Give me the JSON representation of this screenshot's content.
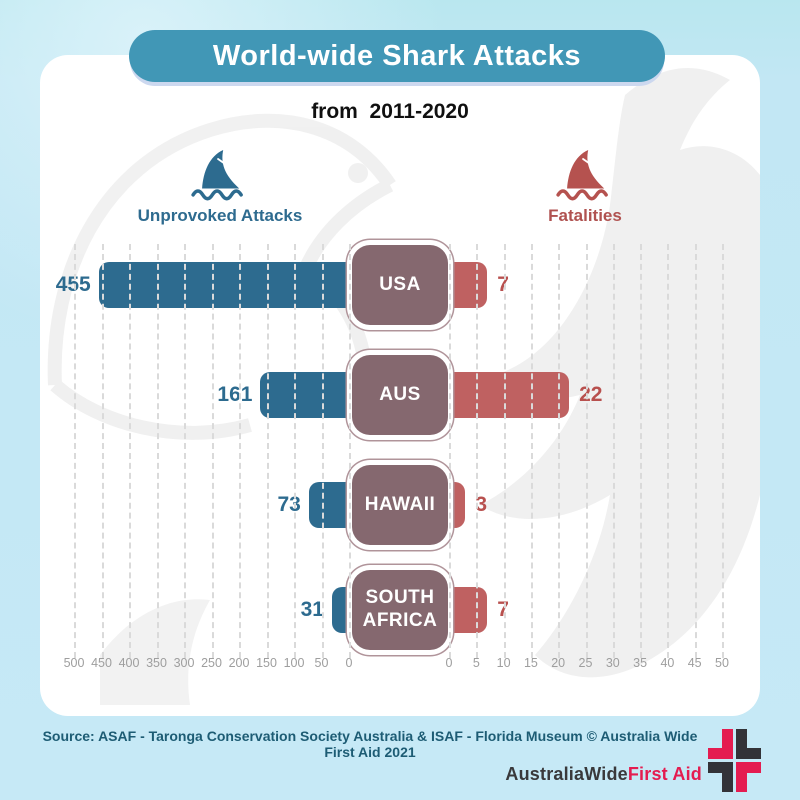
{
  "title": "World-wide Shark Attacks",
  "subtitle": "from  2011-2020",
  "legend": {
    "attacks_label": "Unprovoked Attacks",
    "fatalities_label": "Fatalities"
  },
  "chart_data": {
    "type": "bar",
    "orientation": "horizontal_diverging",
    "categories": [
      "USA",
      "AUS",
      "HAWAII",
      "SOUTH AFRICA"
    ],
    "series": [
      {
        "name": "Unprovoked Attacks",
        "color": "#2d6b8f",
        "values": [
          455,
          161,
          73,
          31
        ],
        "axis_min": 0,
        "axis_max": 500,
        "axis_direction": "right-to-left"
      },
      {
        "name": "Fatalities",
        "color": "#bf6161",
        "values": [
          7,
          22,
          3,
          7
        ],
        "axis_min": 0,
        "axis_max": 50,
        "axis_direction": "left-to-right"
      }
    ],
    "left_axis_ticks": [
      500,
      450,
      400,
      350,
      300,
      250,
      200,
      150,
      100,
      50,
      0
    ],
    "right_axis_ticks": [
      0,
      5,
      10,
      15,
      20,
      25,
      30,
      35,
      40,
      45,
      50
    ],
    "grid": "vertical-dashed",
    "legend_position": "top"
  },
  "footer": {
    "source": "Source: ASAF - Taronga Conservation Society Australia & ISAF - Florida Museum © Australia Wide First Aid 2021",
    "brand_name": "AustraliaWide",
    "brand_suffix": "First Aid"
  },
  "colors": {
    "banner": "#4197b6",
    "page_background": "#c3e7f4",
    "attacks_bar": "#2d6b8f",
    "fatalities_bar": "#bf6161",
    "category_box": "#85686f",
    "brand_red": "#e41c50",
    "brand_dark": "#333338"
  }
}
